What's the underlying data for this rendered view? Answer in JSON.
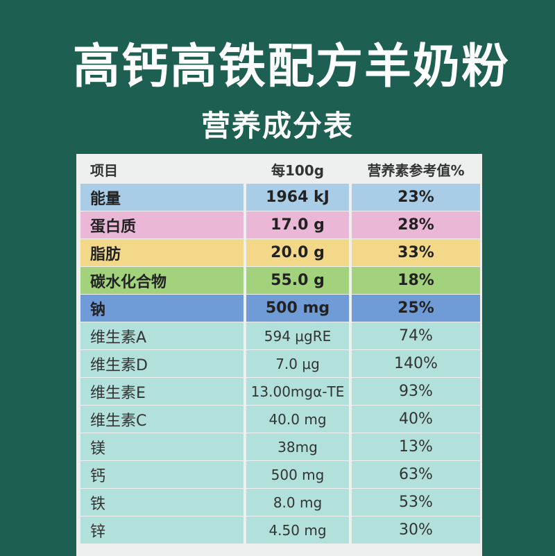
{
  "title": "高钙高铁配方羊奶粉",
  "subtitle": "营养成分表",
  "table": {
    "headers": [
      "项目",
      "每100g",
      "营养素参考值%"
    ],
    "rows": [
      {
        "item": "能量",
        "per100g": "1964 kJ",
        "nrv": "23%",
        "color": "#a9cde6",
        "bold": true
      },
      {
        "item": "蛋白质",
        "per100g": "17.0 g",
        "nrv": "28%",
        "color": "#eab8d6",
        "bold": true
      },
      {
        "item": "脂肪",
        "per100g": "20.0 g",
        "nrv": "33%",
        "color": "#f3d889",
        "bold": true
      },
      {
        "item": "碳水化合物",
        "per100g": "55.0 g",
        "nrv": "18%",
        "color": "#a2d37c",
        "bold": true
      },
      {
        "item": "钠",
        "per100g": "500 mg",
        "nrv": "25%",
        "color": "#6f9bd6",
        "bold": true
      },
      {
        "item": "维生素A",
        "per100g": "594 μgRE",
        "nrv": "74%",
        "color": "#b2e0da",
        "bold": false
      },
      {
        "item": "维生素D",
        "per100g": "7.0 μg",
        "nrv": "140%",
        "color": "#b2e0da",
        "bold": false
      },
      {
        "item": "维生素E",
        "per100g": "13.00mgα-TE",
        "nrv": "93%",
        "color": "#b2e0da",
        "bold": false
      },
      {
        "item": "维生素C",
        "per100g": "40.0 mg",
        "nrv": "40%",
        "color": "#b2e0da",
        "bold": false
      },
      {
        "item": "镁",
        "per100g": "38mg",
        "nrv": "13%",
        "color": "#b2e0da",
        "bold": false
      },
      {
        "item": "钙",
        "per100g": "500 mg",
        "nrv": "63%",
        "color": "#b2e0da",
        "bold": false
      },
      {
        "item": "铁",
        "per100g": "8.0 mg",
        "nrv": "53%",
        "color": "#b2e0da",
        "bold": false
      },
      {
        "item": "锌",
        "per100g": "4.50 mg",
        "nrv": "30%",
        "color": "#b2e0da",
        "bold": false
      }
    ]
  },
  "colors": {
    "background": "#1d5f51",
    "table_bg": "#eef0ef"
  }
}
